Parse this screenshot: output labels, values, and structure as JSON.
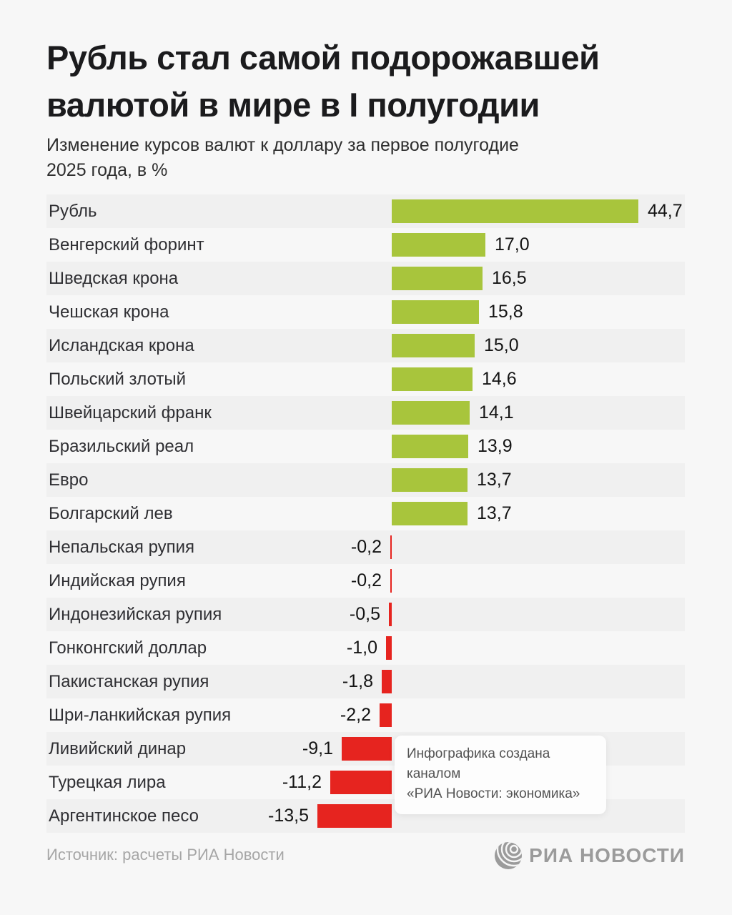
{
  "header": {
    "title": "Рубль стал самой подорожавшей\nвалютой в мире в I полугодии",
    "subtitle": "Изменение курсов валют к доллару за первое полугодие\n2025 года, в %"
  },
  "chart_data": {
    "type": "bar",
    "orientation": "horizontal",
    "title": "Рубль стал самой подорожавшей валютой в мире в I полугодии",
    "subtitle": "Изменение курсов валют к доллару за первое полугодие 2025 года, в %",
    "unit": "%",
    "categories": [
      "Рубль",
      "Венгерский форинт",
      "Шведская крона",
      "Чешская крона",
      "Исландская крона",
      "Польский злотый",
      "Швейцарский франк",
      "Бразильский реал",
      "Евро",
      "Болгарский лев",
      "Непальская рупия",
      "Индийская рупия",
      "Индонезийская рупия",
      "Гонконгский доллар",
      "Пакистанская рупия",
      "Шри-ланкийская рупия",
      "Ливийский динар",
      "Турецкая лира",
      "Аргентинское песо"
    ],
    "values": [
      44.7,
      17.0,
      16.5,
      15.8,
      15.0,
      14.6,
      14.1,
      13.9,
      13.7,
      13.7,
      -0.2,
      -0.2,
      -0.5,
      -1.0,
      -1.8,
      -2.2,
      -9.1,
      -11.2,
      -13.5
    ],
    "value_labels": [
      "44,7",
      "17,0",
      "16,5",
      "15,8",
      "15,0",
      "14,6",
      "14,1",
      "13,9",
      "13,7",
      "13,7",
      "-0,2",
      "-0,2",
      "-0,5",
      "-1,0",
      "-1,8",
      "-2,2",
      "-9,1",
      "-11,2",
      "-13,5"
    ],
    "xlim": [
      -14,
      45
    ],
    "grid": false,
    "legend": false
  },
  "colors": {
    "positive_bar": "#a8c53c",
    "negative_bar": "#e6241f",
    "row_band": "#f0f0f0",
    "page_background": "#f7f7f7",
    "title_text": "#1b1b1d",
    "label_text": "#2f2f33",
    "muted_text": "#a6a6a6",
    "logo_gray": "#9b9b9b"
  },
  "annotation": {
    "text": "Инфографика создана каналом\n«РИА Новости: экономика»"
  },
  "footer": {
    "source": "Источник: расчеты РИА Новости",
    "logo_text": "РИА НОВОСТИ",
    "logo_icon": "globe-icon"
  }
}
